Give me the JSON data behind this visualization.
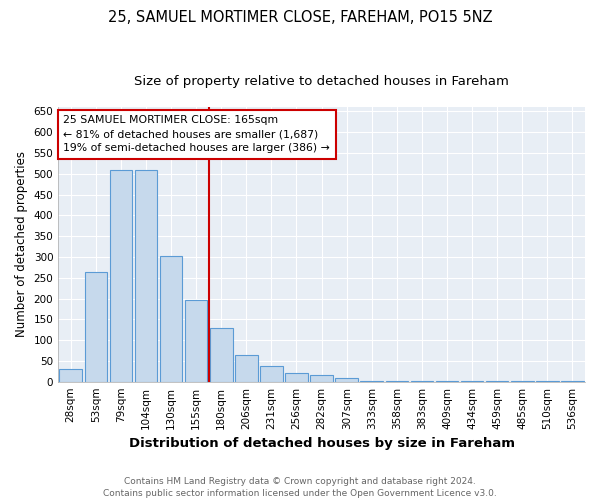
{
  "title1": "25, SAMUEL MORTIMER CLOSE, FAREHAM, PO15 5NZ",
  "title2": "Size of property relative to detached houses in Fareham",
  "xlabel": "Distribution of detached houses by size in Fareham",
  "ylabel": "Number of detached properties",
  "categories": [
    "28sqm",
    "53sqm",
    "79sqm",
    "104sqm",
    "130sqm",
    "155sqm",
    "180sqm",
    "206sqm",
    "231sqm",
    "256sqm",
    "282sqm",
    "307sqm",
    "333sqm",
    "358sqm",
    "383sqm",
    "409sqm",
    "434sqm",
    "459sqm",
    "485sqm",
    "510sqm",
    "536sqm"
  ],
  "values": [
    30,
    263,
    510,
    510,
    303,
    197,
    130,
    65,
    38,
    22,
    15,
    8,
    2,
    2,
    2,
    2,
    2,
    2,
    2,
    2,
    2
  ],
  "bar_color": "#c6d9ec",
  "bar_edge_color": "#5b9bd5",
  "vline_color": "#cc0000",
  "annotation_text": "25 SAMUEL MORTIMER CLOSE: 165sqm\n← 81% of detached houses are smaller (1,687)\n19% of semi-detached houses are larger (386) →",
  "annotation_box_edgecolor": "#cc0000",
  "ylim": [
    0,
    660
  ],
  "yticks": [
    0,
    50,
    100,
    150,
    200,
    250,
    300,
    350,
    400,
    450,
    500,
    550,
    600,
    650
  ],
  "footer1": "Contains HM Land Registry data © Crown copyright and database right 2024.",
  "footer2": "Contains public sector information licensed under the Open Government Licence v3.0.",
  "fig_bg_color": "#ffffff",
  "plot_bg_color": "#e8eef5",
  "title1_fontsize": 10.5,
  "title2_fontsize": 9.5,
  "xlabel_fontsize": 9.5,
  "ylabel_fontsize": 8.5,
  "tick_fontsize": 7.5,
  "annotation_fontsize": 7.8,
  "footer_fontsize": 6.5
}
